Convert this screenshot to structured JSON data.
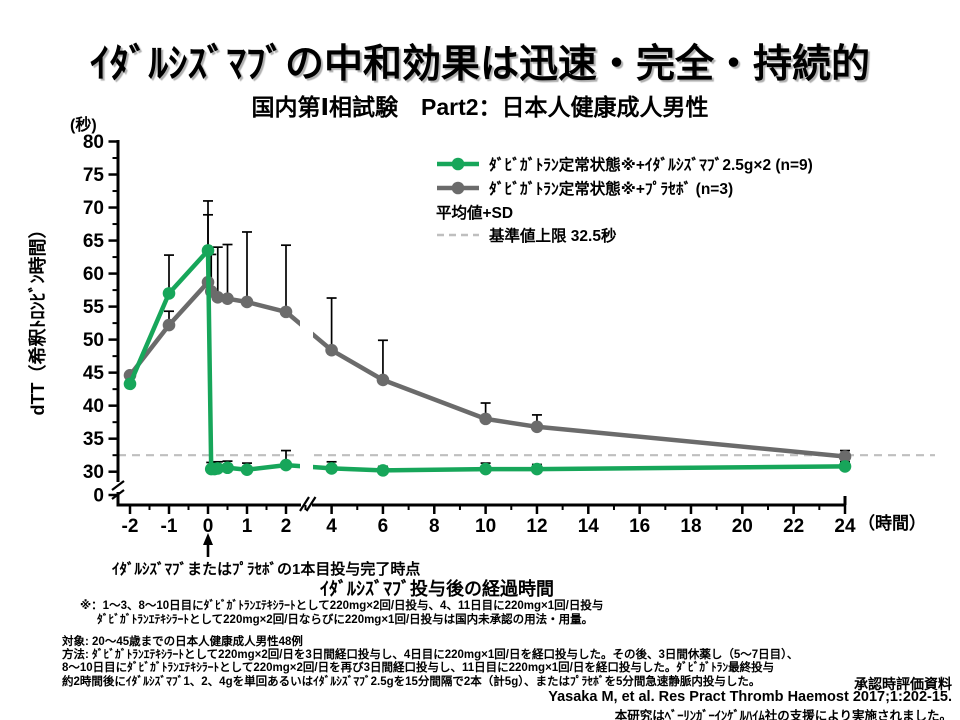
{
  "title": "ｲﾀﾞﾙｼｽﾞﾏﾌﾞの中和効果は迅速・完全・持続的",
  "subtitle": "国内第Ⅰ相試験　Part2：日本人健康成人男性",
  "y_axis": {
    "unit_label": "(秒)",
    "title": "dTT（希釈ﾄﾛﾝﾋﾞﾝ時間）"
  },
  "x_axis": {
    "unit_label": "（時間）",
    "title": "ｲﾀﾞﾙｼｽﾞﾏﾌﾞ投与後の経過時間"
  },
  "legend": {
    "items": [
      {
        "label": "ﾀﾞﾋﾞｶﾞﾄﾗﾝ定常状態※+ｲﾀﾞﾙｼｽﾞﾏﾌﾞ2.5g×2 (n=9)",
        "color_key": "green"
      },
      {
        "label": "ﾀﾞﾋﾞｶﾞﾄﾗﾝ定常状態※+ﾌﾟﾗｾﾎﾞ (n=3)",
        "color_key": "gray"
      }
    ],
    "stat_note": "平均値+SD",
    "reference_label": "基準値上限 32.5秒"
  },
  "annotation": {
    "arrow_label": "ｲﾀﾞﾙｼｽﾞﾏﾌﾞまたはﾌﾟﾗｾﾎﾞの1本目投与完了時点"
  },
  "footnote": {
    "line1": "※：1～3、8～10日目にﾀﾞﾋﾞｶﾞﾄﾗﾝｴﾃｷｼﾗｰﾄとして220mg×2回/日投与、4、11日目に220mg×1回/日投与",
    "line2": "ﾀﾞﾋﾞｶﾞﾄﾗﾝｴﾃｷｼﾗｰﾄとして220mg×2回/日ならびに220mg×1回/日投与は国内未承認の用法・用量。"
  },
  "study": {
    "subjects": "対象: 20～45歳までの日本人健康成人男性48例",
    "method_line1": "方法: ﾀﾞﾋﾞｶﾞﾄﾗﾝｴﾃｷｼﾗｰﾄとして220mg×2回/日を3日間経口投与し、4日目に220mg×1回/日を経口投与した。その後、3日間休薬し（5～7日目）、",
    "method_line2": "8～10日目にﾀﾞﾋﾞｶﾞﾄﾗﾝｴﾃｷｼﾗｰﾄとして220mg×2回/日を再び3日間経口投与し、11日目に220mg×1回/日を経口投与した。ﾀﾞﾋﾞｶﾞﾄﾗﾝ最終投与",
    "method_line3": "約2時間後にｲﾀﾞﾙｼｽﾞﾏﾌﾞ1、2、4gを単回あるいはｲﾀﾞﾙｼｽﾞﾏﾌﾞ2.5gを15分間隔で2本（計5g）、またはﾌﾟﾗｾﾎﾞを5分間急速静脈内投与した。"
  },
  "source": {
    "approval": "承認時評価資料",
    "citation": "Yasaka M, et al. Res Pract Thromb Haemost 2017;1:202-15.",
    "support": "本研究はﾍﾞｰﾘﾝｶﾞｰｲﾝｹﾞﾙﾊｲﾑ社の支援により実施されました。"
  },
  "colors": {
    "green": "#17a65a",
    "gray": "#6b6b6b",
    "dashed": "#bfbfbf",
    "error": "#000000"
  },
  "chart_data": {
    "type": "line",
    "xlabel": "ｲﾀﾞﾙｼｽﾞﾏﾌﾞ投与後の経過時間 (時間)",
    "ylabel": "dTT（希釈ﾄﾛﾝﾋﾞﾝ時間）(秒)",
    "y_ticks": [
      0,
      30,
      35,
      40,
      45,
      50,
      55,
      60,
      65,
      70,
      75,
      80
    ],
    "x_ticks": [
      -2,
      -1,
      0,
      1,
      2,
      4,
      6,
      8,
      10,
      12,
      14,
      16,
      18,
      20,
      22,
      24
    ],
    "x_break_between": [
      2.6,
      3.4
    ],
    "y_break_between": [
      0,
      30
    ],
    "reference_line_y": 32.5,
    "errorbar_meaning": "平均値+SD",
    "series": [
      {
        "name": "ﾀﾞﾋﾞｶﾞﾄﾗﾝ定常状態※+ｲﾀﾞﾙｼｽﾞﾏﾌﾞ2.5g×2 (n=9)",
        "color_key": "green",
        "points": [
          [
            -2,
            43.3,
            0
          ],
          [
            -1,
            57.0,
            5.8
          ],
          [
            0,
            63.5,
            7.5
          ],
          [
            0.083,
            30.4,
            1.0
          ],
          [
            0.167,
            30.4,
            1.0
          ],
          [
            0.25,
            30.5,
            1.0
          ],
          [
            0.5,
            30.6,
            1.0
          ],
          [
            1,
            30.3,
            1.0
          ],
          [
            2,
            31.0,
            2.2
          ],
          [
            4,
            30.5,
            1.0
          ],
          [
            6,
            30.2,
            0.6
          ],
          [
            10,
            30.4,
            0.9
          ],
          [
            12,
            30.4,
            0.7
          ],
          [
            24,
            30.8,
            0.7
          ]
        ]
      },
      {
        "name": "ﾀﾞﾋﾞｶﾞﾄﾗﾝ定常状態※+ﾌﾟﾗｾﾎﾞ (n=3)",
        "color_key": "gray",
        "points": [
          [
            -2,
            44.6,
            0
          ],
          [
            -1,
            52.2,
            2.1
          ],
          [
            0,
            58.7,
            10.2
          ],
          [
            0.083,
            57.3,
            5.6
          ],
          [
            0.25,
            56.4,
            7.6
          ],
          [
            0.5,
            56.2,
            8.2
          ],
          [
            1,
            55.7,
            10.6
          ],
          [
            2,
            54.2,
            10.1
          ],
          [
            4,
            48.4,
            7.9
          ],
          [
            6,
            43.9,
            6.0
          ],
          [
            10,
            38.0,
            2.4
          ],
          [
            12,
            36.8,
            1.8
          ],
          [
            24,
            32.3,
            0.9
          ]
        ]
      }
    ]
  }
}
